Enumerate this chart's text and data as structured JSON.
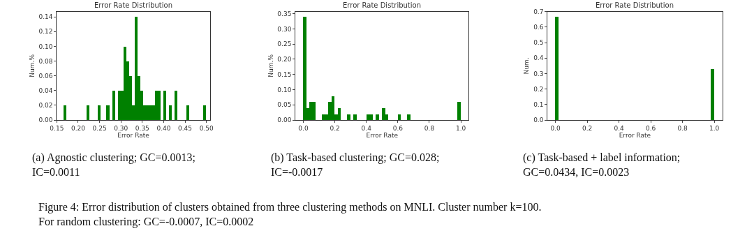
{
  "chart_data": [
    {
      "type": "histogram",
      "title": "Error Rate Distribution",
      "xlabel": "Error Rate",
      "ylabel": "Num.%",
      "color": "#008000",
      "bins": [
        0.1667,
        0.1733,
        0.18,
        0.1867,
        0.1933,
        0.2,
        0.2067,
        0.2133,
        0.22,
        0.2267,
        0.2333,
        0.24,
        0.2467,
        0.2533,
        0.26,
        0.2667,
        0.2733,
        0.28,
        0.2867,
        0.2933,
        0.3,
        0.3067,
        0.3133,
        0.32,
        0.3267,
        0.3333,
        0.34,
        0.3467,
        0.3533,
        0.36,
        0.3667,
        0.3733,
        0.38,
        0.3867,
        0.3933,
        0.4,
        0.4067,
        0.4133,
        0.42,
        0.4267,
        0.4333,
        0.44,
        0.4467,
        0.4533,
        0.46,
        0.4667,
        0.4733,
        0.48,
        0.4867,
        0.4933,
        0.5
      ],
      "values": [
        0.02,
        0,
        0,
        0,
        0,
        0,
        0,
        0,
        0.02,
        0,
        0,
        0,
        0.02,
        0,
        0,
        0.02,
        0,
        0.04,
        0,
        0.04,
        0.04,
        0.1,
        0.08,
        0.06,
        0.02,
        0.14,
        0.06,
        0.04,
        0.02,
        0.02,
        0.02,
        0.02,
        0.04,
        0.04,
        0,
        0.04,
        0,
        0.02,
        0,
        0.04,
        0,
        0,
        0,
        0.02,
        0,
        0,
        0,
        0,
        0,
        0.02
      ],
      "xlim": [
        0.15,
        0.5083
      ],
      "xticks": [
        {
          "value": 0.15,
          "label": "0.15"
        },
        {
          "value": 0.2,
          "label": "0.20"
        },
        {
          "value": 0.25,
          "label": "0.25"
        },
        {
          "value": 0.3,
          "label": "0.30"
        },
        {
          "value": 0.35,
          "label": "0.35"
        },
        {
          "value": 0.4,
          "label": "0.40"
        },
        {
          "value": 0.45,
          "label": "0.45"
        },
        {
          "value": 0.5,
          "label": "0.50"
        }
      ],
      "ylim": [
        0,
        0.147
      ],
      "yticks": [
        {
          "value": 0,
          "label": "0.00"
        },
        {
          "value": 0.02,
          "label": "0.02"
        },
        {
          "value": 0.04,
          "label": "0.04"
        },
        {
          "value": 0.06,
          "label": "0.06"
        },
        {
          "value": 0.08,
          "label": "0.08"
        },
        {
          "value": 0.1,
          "label": "0.10"
        },
        {
          "value": 0.12,
          "label": "0.12"
        },
        {
          "value": 0.14,
          "label": "0.14"
        }
      ],
      "annotations": [
        "(a) Agnostic clustering; GC=0.0013;\nIC=0.0011",
        "Figure 4: Error distribution of clusters obtained from three clustering methods on MNLI. Cluster number k=100.\nFor random clustering: GC=-0.0007, IC=0.0002"
      ]
    },
    {
      "type": "histogram",
      "title": "Error Rate Distribution",
      "xlabel": "Error Rate",
      "ylabel": "Num.%",
      "color": "#008000",
      "bins": [
        0,
        0.02,
        0.04,
        0.06,
        0.08,
        0.1,
        0.12,
        0.14,
        0.16,
        0.18,
        0.2,
        0.22,
        0.24,
        0.26,
        0.28,
        0.3,
        0.32,
        0.34,
        0.36,
        0.38,
        0.4,
        0.42,
        0.44,
        0.46,
        0.48,
        0.5,
        0.52,
        0.54,
        0.56,
        0.58,
        0.6,
        0.62,
        0.64,
        0.66,
        0.68,
        0.7,
        0.72,
        0.74,
        0.76,
        0.78,
        0.8,
        0.82,
        0.84,
        0.86,
        0.88,
        0.9,
        0.92,
        0.94,
        0.96,
        0.98,
        1.0
      ],
      "values": [
        0.34,
        0.04,
        0.06,
        0.06,
        0,
        0,
        0.02,
        0.02,
        0.06,
        0.08,
        0.02,
        0.04,
        0,
        0,
        0.02,
        0,
        0.02,
        0,
        0,
        0,
        0.02,
        0.02,
        0,
        0.02,
        0,
        0.04,
        0.02,
        0,
        0,
        0,
        0.02,
        0,
        0,
        0.02,
        0,
        0,
        0,
        0,
        0,
        0,
        0,
        0,
        0,
        0,
        0,
        0,
        0,
        0,
        0,
        0.06
      ],
      "xlim": [
        -0.05,
        1.05
      ],
      "xticks": [
        {
          "value": 0,
          "label": "0.0"
        },
        {
          "value": 0.2,
          "label": "0.2"
        },
        {
          "value": 0.4,
          "label": "0.4"
        },
        {
          "value": 0.6,
          "label": "0.6"
        },
        {
          "value": 0.8,
          "label": "0.8"
        },
        {
          "value": 1,
          "label": "1.0"
        }
      ],
      "ylim": [
        0,
        0.357
      ],
      "yticks": [
        {
          "value": 0,
          "label": "0.00"
        },
        {
          "value": 0.05,
          "label": "0.05"
        },
        {
          "value": 0.1,
          "label": "0.10"
        },
        {
          "value": 0.15,
          "label": "0.15"
        },
        {
          "value": 0.2,
          "label": "0.20"
        },
        {
          "value": 0.25,
          "label": "0.25"
        },
        {
          "value": 0.3,
          "label": "0.30"
        },
        {
          "value": 0.35,
          "label": "0.35"
        }
      ],
      "annotations": [
        "(b) Task-based clustering; GC=0.028;\nIC=-0.0017"
      ]
    },
    {
      "type": "histogram",
      "title": "Error Rate Distribution",
      "xlabel": "Error Rate",
      "ylabel": "Num.",
      "color": "#008000",
      "bins": [
        0,
        0.02,
        0.04,
        0.06,
        0.08,
        0.1,
        0.12,
        0.14,
        0.16,
        0.18,
        0.2,
        0.22,
        0.24,
        0.26,
        0.28,
        0.3,
        0.32,
        0.34,
        0.36,
        0.38,
        0.4,
        0.42,
        0.44,
        0.46,
        0.48,
        0.5,
        0.52,
        0.54,
        0.56,
        0.58,
        0.6,
        0.62,
        0.64,
        0.66,
        0.68,
        0.7,
        0.72,
        0.74,
        0.76,
        0.78,
        0.8,
        0.82,
        0.84,
        0.86,
        0.88,
        0.9,
        0.92,
        0.94,
        0.96,
        0.98,
        1.0
      ],
      "values": [
        0.67,
        0,
        0,
        0,
        0,
        0,
        0,
        0,
        0,
        0,
        0,
        0,
        0,
        0,
        0,
        0,
        0,
        0,
        0,
        0,
        0,
        0,
        0,
        0,
        0,
        0,
        0,
        0,
        0,
        0,
        0,
        0,
        0,
        0,
        0,
        0,
        0,
        0,
        0,
        0,
        0,
        0,
        0,
        0,
        0,
        0,
        0,
        0,
        0,
        0.33
      ],
      "xlim": [
        -0.05,
        1.05
      ],
      "xticks": [
        {
          "value": 0,
          "label": "0.0"
        },
        {
          "value": 0.2,
          "label": "0.2"
        },
        {
          "value": 0.4,
          "label": "0.4"
        },
        {
          "value": 0.6,
          "label": "0.6"
        },
        {
          "value": 0.8,
          "label": "0.8"
        },
        {
          "value": 1,
          "label": "1.0"
        }
      ],
      "ylim": [
        0,
        0.7
      ],
      "yticks": [
        {
          "value": 0,
          "label": "0.0"
        },
        {
          "value": 0.1,
          "label": "0.1"
        },
        {
          "value": 0.2,
          "label": "0.2"
        },
        {
          "value": 0.3,
          "label": "0.3"
        },
        {
          "value": 0.4,
          "label": "0.4"
        },
        {
          "value": 0.5,
          "label": "0.5"
        },
        {
          "value": 0.6,
          "label": "0.6"
        },
        {
          "value": 0.7,
          "label": "0.7"
        }
      ],
      "annotations": [
        "(c) Task-based + label information;\nGC=0.0434, IC=0.0023"
      ]
    }
  ]
}
